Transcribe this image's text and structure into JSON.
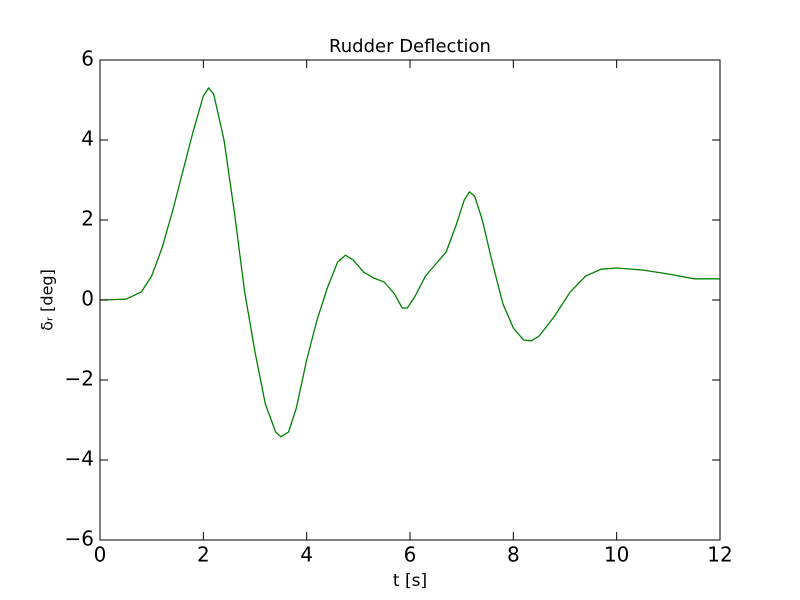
{
  "chart_data": {
    "type": "line",
    "title": "Rudder Deflection",
    "xlabel": "t [s]",
    "ylabel": "δᵣ [deg]",
    "x": [
      0,
      0.5,
      0.8,
      1.0,
      1.2,
      1.4,
      1.6,
      1.8,
      2.0,
      2.1,
      2.2,
      2.4,
      2.6,
      2.8,
      3.0,
      3.2,
      3.4,
      3.5,
      3.65,
      3.8,
      4.0,
      4.2,
      4.4,
      4.6,
      4.75,
      4.9,
      5.1,
      5.3,
      5.5,
      5.7,
      5.85,
      5.95,
      6.1,
      6.3,
      6.5,
      6.7,
      6.9,
      7.05,
      7.15,
      7.25,
      7.4,
      7.6,
      7.8,
      8.0,
      8.2,
      8.35,
      8.5,
      8.8,
      9.1,
      9.4,
      9.7,
      10.0,
      10.5,
      11.0,
      11.5,
      12.0
    ],
    "series": [
      {
        "color": "#008000",
        "values": [
          0,
          0.02,
          0.2,
          0.6,
          1.3,
          2.2,
          3.2,
          4.2,
          5.1,
          5.3,
          5.15,
          4.0,
          2.2,
          0.2,
          -1.3,
          -2.6,
          -3.3,
          -3.42,
          -3.3,
          -2.7,
          -1.5,
          -0.5,
          0.3,
          0.95,
          1.12,
          1.0,
          0.7,
          0.55,
          0.45,
          0.15,
          -0.2,
          -0.2,
          0.1,
          0.6,
          0.9,
          1.2,
          1.9,
          2.5,
          2.7,
          2.6,
          2.0,
          0.9,
          -0.1,
          -0.7,
          -1.0,
          -1.02,
          -0.9,
          -0.4,
          0.2,
          0.6,
          0.77,
          0.8,
          0.75,
          0.65,
          0.53,
          0.53
        ]
      }
    ],
    "xlim": [
      0,
      12
    ],
    "xticks": [
      0,
      2,
      4,
      6,
      8,
      10,
      12
    ],
    "ylim": [
      -6,
      6
    ],
    "yticks": [
      {
        "value": -6,
        "label": "−6"
      },
      {
        "value": -4,
        "label": "−4"
      },
      {
        "value": -2,
        "label": "−2"
      },
      0,
      2,
      4,
      6
    ]
  }
}
